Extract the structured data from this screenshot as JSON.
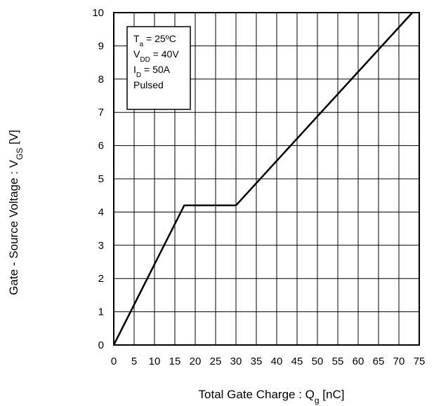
{
  "chart_data": {
    "type": "line",
    "xlabel_main": "Total Gate Charge : Q",
    "xlabel_sub": "g",
    "xlabel_unit": " [nC]",
    "ylabel_main": "Gate - Source Voltage : V",
    "ylabel_sub": "GS",
    "ylabel_unit": " [V]",
    "xlim": [
      0,
      75
    ],
    "ylim": [
      0,
      10
    ],
    "x_ticks": [
      "0",
      "5",
      "10",
      "15",
      "20",
      "25",
      "30",
      "35",
      "40",
      "45",
      "50",
      "55",
      "60",
      "65",
      "70",
      "75"
    ],
    "y_ticks": [
      "0",
      "1",
      "2",
      "3",
      "4",
      "5",
      "6",
      "7",
      "8",
      "9",
      "10"
    ],
    "grid": true,
    "legend_position": "top-left",
    "conditions": [
      {
        "main": "T",
        "sub": "a",
        "rest": " = 25ºC"
      },
      {
        "main": "V",
        "sub": "DD",
        "rest": " = 40V"
      },
      {
        "main": "I",
        "sub": "D",
        "rest": " = 50A"
      },
      {
        "main": "Pulsed",
        "sub": "",
        "rest": ""
      }
    ],
    "series": [
      {
        "x": [
          0,
          17.3,
          30,
          73.3
        ],
        "y": [
          0,
          4.2,
          4.2,
          10
        ]
      }
    ]
  }
}
